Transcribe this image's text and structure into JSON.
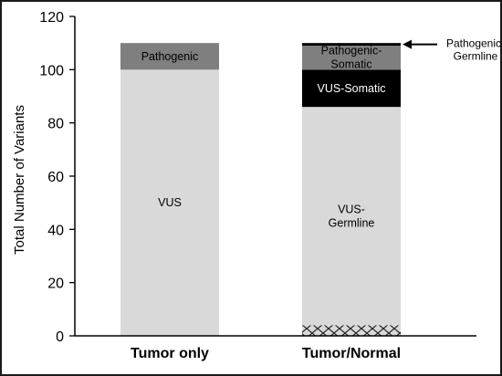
{
  "chart_data": {
    "type": "bar",
    "stacked": true,
    "ylabel": "Total Number of Variants",
    "ylim": [
      0,
      120
    ],
    "yticks": [
      0,
      20,
      40,
      60,
      80,
      100,
      120
    ],
    "categories": [
      "Tumor only",
      "Tumor/Normal"
    ],
    "bars": [
      {
        "category": "Tumor only",
        "segments": [
          {
            "label": "VUS",
            "value": 100,
            "color": "#d9d9d9"
          },
          {
            "label": "Pathogenic",
            "value": 10,
            "color": "#7f7f7f"
          }
        ]
      },
      {
        "category": "Tumor/Normal",
        "segments": [
          {
            "label": "",
            "value": 4,
            "color": "#d9d9d9",
            "pattern": "crosshatch"
          },
          {
            "label": "VUS-\nGermline",
            "value": 82,
            "color": "#d9d9d9"
          },
          {
            "label": "VUS-Somatic",
            "value": 14,
            "color": "#000000"
          },
          {
            "label": "Pathogenic-\nSomatic",
            "value": 9,
            "color": "#7f7f7f"
          },
          {
            "label": "",
            "value": 1,
            "color": "#000000"
          }
        ]
      }
    ],
    "annotations": [
      {
        "text": "Pathogenic-\nGermline",
        "target": "Tumor/Normal",
        "at": 109.5
      }
    ],
    "colors": {
      "axis": "#000000",
      "frame": "#1a1a1a",
      "label_dark": "#ffffff",
      "label_light": "#000000"
    }
  }
}
